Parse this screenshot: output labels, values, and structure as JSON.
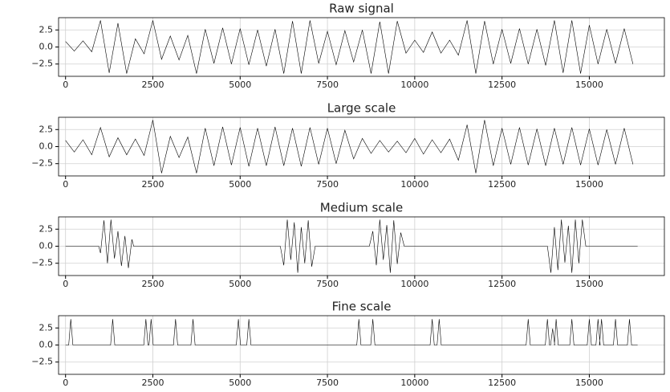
{
  "chart_data": [
    {
      "type": "line",
      "title": "Raw signal",
      "grid": true,
      "color": "#000000",
      "x": [
        0,
        250,
        500,
        750,
        1000,
        1250,
        1500,
        1750,
        2000,
        2250,
        2500,
        2750,
        3000,
        3250,
        3500,
        3750,
        4000,
        4250,
        4500,
        4750,
        5000,
        5250,
        5500,
        5750,
        6000,
        6250,
        6500,
        6750,
        7000,
        7250,
        7500,
        7750,
        8000,
        8250,
        8500,
        8750,
        9000,
        9250,
        9500,
        9750,
        10000,
        10250,
        10500,
        10750,
        11000,
        11250,
        11500,
        11750,
        12000,
        12250,
        12500,
        12750,
        13000,
        13250,
        13500,
        13750,
        14000,
        14250,
        14500,
        14750,
        15000,
        15250,
        15500,
        15750,
        16000,
        16250
      ],
      "values": [
        0.8,
        -0.6,
        0.9,
        -0.7,
        3.9,
        -3.8,
        3.5,
        -3.9,
        1.2,
        -1.0,
        3.9,
        -1.8,
        1.6,
        -1.9,
        1.7,
        -3.9,
        2.6,
        -2.4,
        2.8,
        -2.5,
        2.7,
        -2.6,
        2.5,
        -2.8,
        2.6,
        -3.9,
        3.8,
        -3.9,
        3.9,
        -2.4,
        2.3,
        -2.6,
        2.4,
        -2.2,
        2.5,
        -3.9,
        3.7,
        -3.9,
        3.8,
        -0.9,
        1.0,
        -0.8,
        2.2,
        -0.9,
        1.0,
        -1.2,
        3.9,
        -3.9,
        3.8,
        -2.5,
        2.6,
        -2.4,
        2.7,
        -2.5,
        2.6,
        -2.7,
        3.9,
        -3.8,
        3.9,
        -3.9,
        3.2,
        -2.5,
        2.6,
        -2.4,
        2.7,
        -2.5
      ],
      "xlim": [
        -200,
        17150
      ],
      "ylim": [
        -4.3,
        4.3
      ],
      "xticks": [
        0,
        2500,
        5000,
        7500,
        10000,
        12500,
        15000
      ],
      "yticks": [
        {
          "value": -2.5,
          "label": "−2.5"
        },
        {
          "value": 0,
          "label": "0.0"
        },
        2.5
      ]
    },
    {
      "type": "line",
      "title": "Large scale",
      "grid": true,
      "color": "#000000",
      "x": [
        0,
        250,
        500,
        750,
        1000,
        1250,
        1500,
        1750,
        2000,
        2250,
        2500,
        2750,
        3000,
        3250,
        3500,
        3750,
        4000,
        4250,
        4500,
        4750,
        5000,
        5250,
        5500,
        5750,
        6000,
        6250,
        6500,
        6750,
        7000,
        7250,
        7500,
        7750,
        8000,
        8250,
        8500,
        8750,
        9000,
        9250,
        9500,
        9750,
        10000,
        10250,
        10500,
        10750,
        11000,
        11250,
        11500,
        11750,
        12000,
        12250,
        12500,
        12750,
        13000,
        13250,
        13500,
        13750,
        14000,
        14250,
        14500,
        14750,
        15000,
        15250,
        15500,
        15750,
        16000,
        16250
      ],
      "values": [
        0.9,
        -0.8,
        1.0,
        -1.2,
        2.8,
        -1.5,
        1.3,
        -1.2,
        1.1,
        -1.3,
        3.9,
        -3.9,
        1.5,
        -1.6,
        1.4,
        -3.9,
        2.7,
        -2.8,
        2.9,
        -2.7,
        2.8,
        -2.9,
        2.7,
        -2.8,
        2.9,
        -2.8,
        2.7,
        -2.9,
        2.8,
        -2.6,
        2.7,
        -2.5,
        2.4,
        -1.8,
        1.2,
        -1.0,
        0.9,
        -0.8,
        0.8,
        -0.9,
        1.2,
        -1.1,
        1.0,
        -0.9,
        1.1,
        -2.0,
        3.2,
        -3.9,
        3.9,
        -2.8,
        2.7,
        -2.6,
        2.8,
        -2.7,
        2.6,
        -2.8,
        2.7,
        -2.6,
        2.8,
        -2.7,
        2.6,
        -2.7,
        2.5,
        -2.6,
        2.7,
        -2.6
      ],
      "xlim": [
        -200,
        17150
      ],
      "ylim": [
        -4.3,
        4.3
      ],
      "xticks": [
        0,
        2500,
        5000,
        7500,
        10000,
        12500,
        15000
      ],
      "yticks": [
        {
          "value": -2.5,
          "label": "−2.5"
        },
        {
          "value": 0,
          "label": "0.0"
        },
        2.5
      ]
    },
    {
      "type": "line",
      "title": "Medium scale",
      "grid": true,
      "color": "#000000",
      "x": [
        0,
        950,
        1000,
        1100,
        1200,
        1300,
        1400,
        1500,
        1600,
        1700,
        1800,
        1900,
        1950,
        6150,
        6250,
        6350,
        6450,
        6550,
        6650,
        6750,
        6850,
        6950,
        7050,
        7150,
        8700,
        8800,
        8900,
        9000,
        9100,
        9200,
        9300,
        9400,
        9500,
        9600,
        9700,
        13800,
        13900,
        14000,
        14100,
        14200,
        14300,
        14400,
        14500,
        14600,
        14700,
        14800,
        14900,
        16384
      ],
      "values": [
        0,
        0,
        -1.0,
        3.8,
        -2.5,
        3.9,
        -1.8,
        2.2,
        -2.9,
        1.5,
        -3.2,
        1.0,
        0,
        0,
        -2.8,
        3.9,
        -2.0,
        3.5,
        -3.9,
        2.8,
        -2.5,
        3.8,
        -3.0,
        0,
        0,
        2.2,
        -2.8,
        3.9,
        -2.0,
        3.1,
        -3.9,
        3.8,
        -2.6,
        2.0,
        0,
        0,
        -3.9,
        2.8,
        -3.5,
        3.9,
        -2.4,
        3.0,
        -3.9,
        3.9,
        -2.5,
        3.9,
        0,
        0
      ],
      "xlim": [
        -200,
        17150
      ],
      "ylim": [
        -4.3,
        4.3
      ],
      "xticks": [
        0,
        2500,
        5000,
        7500,
        10000,
        12500,
        15000
      ],
      "yticks": [
        {
          "value": -2.5,
          "label": "−2.5"
        },
        {
          "value": 0,
          "label": "0.0"
        },
        2.5
      ]
    },
    {
      "type": "line",
      "title": "Fine scale",
      "grid": true,
      "color": "#000000",
      "x": [
        0,
        90,
        150,
        210,
        1290,
        1350,
        1410,
        2240,
        2300,
        2360,
        2390,
        2450,
        2510,
        3090,
        3150,
        3210,
        3590,
        3650,
        3710,
        4890,
        4950,
        5010,
        5190,
        5250,
        5310,
        8340,
        8400,
        8460,
        8740,
        8800,
        8860,
        10440,
        10500,
        10560,
        10640,
        10700,
        10760,
        13190,
        13250,
        13310,
        13740,
        13800,
        13860,
        13890,
        13950,
        14010,
        14000,
        14050,
        14110,
        14440,
        14500,
        14560,
        14940,
        15000,
        15060,
        15190,
        15250,
        15310,
        15290,
        15350,
        15410,
        15690,
        15750,
        15810,
        16090,
        16150,
        16210,
        16384
      ],
      "values": [
        0,
        0,
        3.8,
        0,
        0,
        3.8,
        0,
        0,
        3.8,
        0,
        0,
        3.8,
        0,
        0,
        3.8,
        0,
        0,
        3.8,
        0,
        0,
        3.8,
        0,
        0,
        3.8,
        0,
        0,
        3.8,
        0,
        0,
        3.8,
        0,
        0,
        3.8,
        0,
        0,
        3.8,
        0,
        0,
        3.8,
        0,
        0,
        3.8,
        0,
        0,
        2.4,
        0,
        0,
        3.8,
        0,
        0,
        3.8,
        0,
        0,
        3.8,
        0,
        0,
        3.8,
        0,
        0,
        3.8,
        0,
        0,
        3.8,
        0,
        0,
        3.8,
        0,
        0
      ],
      "xlim": [
        -200,
        17150
      ],
      "ylim": [
        -4.3,
        4.3
      ],
      "xticks": [
        0,
        2500,
        5000,
        7500,
        10000,
        12500,
        15000
      ],
      "yticks": [
        {
          "value": -2.5,
          "label": "−2.5"
        },
        {
          "value": 0,
          "label": "0.0"
        },
        2.5
      ]
    }
  ]
}
